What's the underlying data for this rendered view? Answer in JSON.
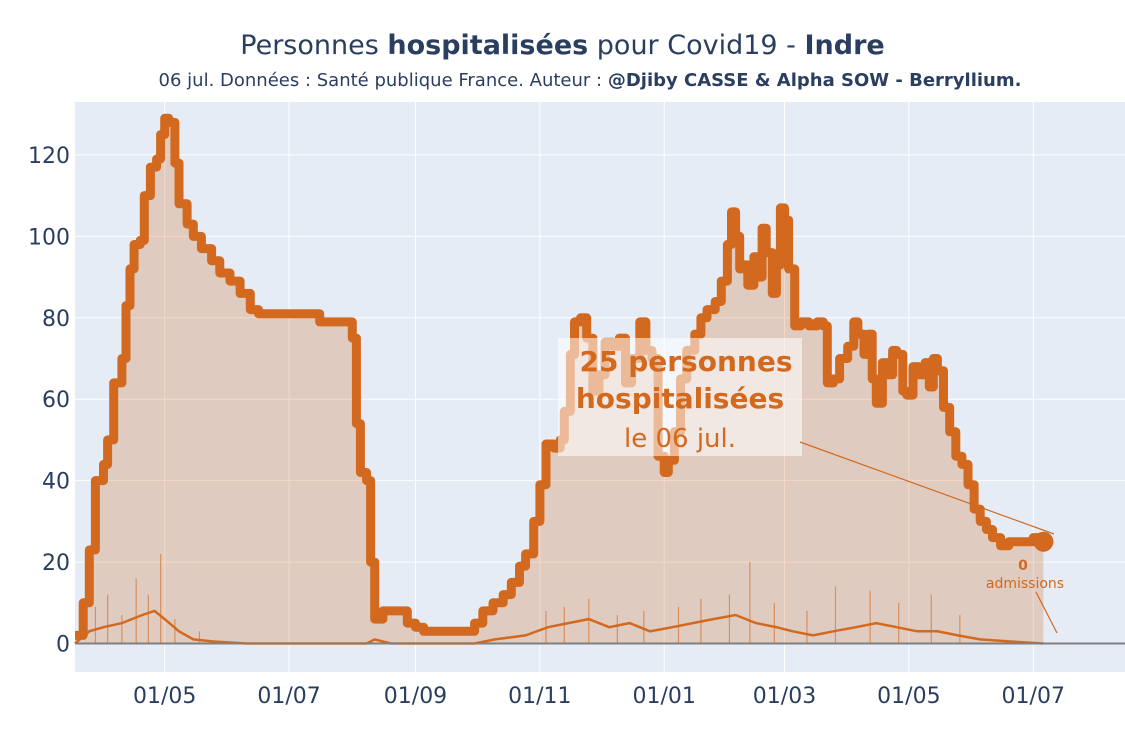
{
  "header": {
    "title_pre": "Personnes ",
    "title_bold": "hospitalisées",
    "title_mid": " pour Covid19 - ",
    "title_region": "Indre",
    "subtitle_pre": "06 jul. Données : Santé publique France. Auteur : ",
    "subtitle_bold": "@Djiby CASSE & Alpha SOW - Berryllium."
  },
  "annotation": {
    "value_line": "25 personnes",
    "label_line": "hospitalisées",
    "date_line": "le 06 jul.",
    "admissions_value": "0",
    "admissions_label": "admissions"
  },
  "colors": {
    "plot_bg": "#e5ecf6",
    "line": "#d2691e",
    "fill": "rgba(210,105,30,0.25)",
    "admissions": "#d2691e",
    "axis_text": "#2a3f5f"
  },
  "chart_data": {
    "type": "area",
    "x_start": "2020-03-18",
    "x_end": "2021-07-06",
    "xlim": [
      "2020-03-18",
      "2021-08-15"
    ],
    "ylim": [
      -7,
      133
    ],
    "y_ticks": [
      0,
      20,
      40,
      60,
      80,
      100,
      120
    ],
    "x_ticks": [
      {
        "date": "2020-05-01",
        "label": "01/05"
      },
      {
        "date": "2020-07-01",
        "label": "01/07"
      },
      {
        "date": "2020-09-01",
        "label": "01/09"
      },
      {
        "date": "2020-11-01",
        "label": "01/11"
      },
      {
        "date": "2021-01-01",
        "label": "01/01"
      },
      {
        "date": "2021-03-01",
        "label": "01/03"
      },
      {
        "date": "2021-05-01",
        "label": "01/05"
      },
      {
        "date": "2021-07-01",
        "label": "01/07"
      }
    ],
    "series": [
      {
        "name": "hospitalisées",
        "points": [
          [
            "2020-03-18",
            2
          ],
          [
            "2020-03-22",
            10
          ],
          [
            "2020-03-25",
            23
          ],
          [
            "2020-03-28",
            40
          ],
          [
            "2020-04-01",
            44
          ],
          [
            "2020-04-03",
            50
          ],
          [
            "2020-04-06",
            64
          ],
          [
            "2020-04-10",
            70
          ],
          [
            "2020-04-12",
            83
          ],
          [
            "2020-04-14",
            92
          ],
          [
            "2020-04-16",
            98
          ],
          [
            "2020-04-19",
            99
          ],
          [
            "2020-04-21",
            110
          ],
          [
            "2020-04-24",
            117
          ],
          [
            "2020-04-27",
            119
          ],
          [
            "2020-04-29",
            125
          ],
          [
            "2020-05-01",
            129
          ],
          [
            "2020-05-03",
            128
          ],
          [
            "2020-05-06",
            118
          ],
          [
            "2020-05-08",
            108
          ],
          [
            "2020-05-12",
            103
          ],
          [
            "2020-05-15",
            100
          ],
          [
            "2020-05-19",
            97
          ],
          [
            "2020-05-24",
            94
          ],
          [
            "2020-05-28",
            91
          ],
          [
            "2020-06-02",
            89
          ],
          [
            "2020-06-07",
            86
          ],
          [
            "2020-06-12",
            82
          ],
          [
            "2020-06-16",
            81
          ],
          [
            "2020-06-20",
            81
          ],
          [
            "2020-07-10",
            81
          ],
          [
            "2020-07-15",
            81
          ],
          [
            "2020-07-16",
            79
          ],
          [
            "2020-07-30",
            79
          ],
          [
            "2020-08-01",
            75
          ],
          [
            "2020-08-03",
            54
          ],
          [
            "2020-08-05",
            42
          ],
          [
            "2020-08-08",
            40
          ],
          [
            "2020-08-10",
            20
          ],
          [
            "2020-08-12",
            6
          ],
          [
            "2020-08-16",
            8
          ],
          [
            "2020-08-25",
            8
          ],
          [
            "2020-08-28",
            5
          ],
          [
            "2020-09-01",
            4
          ],
          [
            "2020-09-05",
            3
          ],
          [
            "2020-09-25",
            3
          ],
          [
            "2020-09-27",
            3
          ],
          [
            "2020-09-30",
            5
          ],
          [
            "2020-10-04",
            8
          ],
          [
            "2020-10-09",
            10
          ],
          [
            "2020-10-14",
            12
          ],
          [
            "2020-10-18",
            15
          ],
          [
            "2020-10-22",
            19
          ],
          [
            "2020-10-25",
            22
          ],
          [
            "2020-10-29",
            30
          ],
          [
            "2020-11-01",
            39
          ],
          [
            "2020-11-04",
            49
          ],
          [
            "2020-11-08",
            48
          ],
          [
            "2020-11-11",
            50
          ],
          [
            "2020-11-13",
            57
          ],
          [
            "2020-11-16",
            71
          ],
          [
            "2020-11-18",
            79
          ],
          [
            "2020-11-21",
            80
          ],
          [
            "2020-11-24",
            75
          ],
          [
            "2020-11-27",
            62
          ],
          [
            "2020-11-30",
            66
          ],
          [
            "2020-12-03",
            74
          ],
          [
            "2020-12-07",
            73
          ],
          [
            "2020-12-10",
            75
          ],
          [
            "2020-12-13",
            64
          ],
          [
            "2020-12-16",
            70
          ],
          [
            "2020-12-20",
            79
          ],
          [
            "2020-12-23",
            72
          ],
          [
            "2020-12-26",
            70
          ],
          [
            "2020-12-29",
            46
          ],
          [
            "2021-01-01",
            42
          ],
          [
            "2021-01-03",
            45
          ],
          [
            "2021-01-06",
            52
          ],
          [
            "2021-01-09",
            65
          ],
          [
            "2021-01-12",
            72
          ],
          [
            "2021-01-16",
            76
          ],
          [
            "2021-01-19",
            80
          ],
          [
            "2021-01-22",
            82
          ],
          [
            "2021-01-26",
            84
          ],
          [
            "2021-01-29",
            89
          ],
          [
            "2021-02-01",
            98
          ],
          [
            "2021-02-03",
            106
          ],
          [
            "2021-02-05",
            100
          ],
          [
            "2021-02-07",
            92
          ],
          [
            "2021-02-09",
            93
          ],
          [
            "2021-02-11",
            88
          ],
          [
            "2021-02-14",
            95
          ],
          [
            "2021-02-16",
            90
          ],
          [
            "2021-02-18",
            102
          ],
          [
            "2021-02-20",
            96
          ],
          [
            "2021-02-23",
            86
          ],
          [
            "2021-02-25",
            93
          ],
          [
            "2021-02-27",
            107
          ],
          [
            "2021-03-01",
            104
          ],
          [
            "2021-03-03",
            92
          ],
          [
            "2021-03-06",
            78
          ],
          [
            "2021-03-09",
            79
          ],
          [
            "2021-03-13",
            78
          ],
          [
            "2021-03-17",
            79
          ],
          [
            "2021-03-20",
            78
          ],
          [
            "2021-03-22",
            64
          ],
          [
            "2021-03-25",
            65
          ],
          [
            "2021-03-28",
            70
          ],
          [
            "2021-04-01",
            73
          ],
          [
            "2021-04-04",
            79
          ],
          [
            "2021-04-06",
            76
          ],
          [
            "2021-04-09",
            71
          ],
          [
            "2021-04-11",
            76
          ],
          [
            "2021-04-13",
            65
          ],
          [
            "2021-04-15",
            59
          ],
          [
            "2021-04-18",
            69
          ],
          [
            "2021-04-21",
            66
          ],
          [
            "2021-04-23",
            72
          ],
          [
            "2021-04-25",
            71
          ],
          [
            "2021-04-28",
            62
          ],
          [
            "2021-04-30",
            61
          ],
          [
            "2021-05-03",
            68
          ],
          [
            "2021-05-06",
            66
          ],
          [
            "2021-05-09",
            69
          ],
          [
            "2021-05-11",
            63
          ],
          [
            "2021-05-13",
            70
          ],
          [
            "2021-05-15",
            67
          ],
          [
            "2021-05-18",
            58
          ],
          [
            "2021-05-21",
            52
          ],
          [
            "2021-05-24",
            46
          ],
          [
            "2021-05-27",
            44
          ],
          [
            "2021-05-30",
            39
          ],
          [
            "2021-06-02",
            33
          ],
          [
            "2021-06-05",
            30
          ],
          [
            "2021-06-08",
            28
          ],
          [
            "2021-06-11",
            26
          ],
          [
            "2021-06-15",
            24
          ],
          [
            "2021-06-19",
            25
          ],
          [
            "2021-06-25",
            25
          ],
          [
            "2021-07-01",
            26
          ],
          [
            "2021-07-06",
            25
          ]
        ]
      },
      {
        "name": "admissions",
        "points": [
          [
            "2020-03-18",
            0
          ],
          [
            "2020-03-25",
            3
          ],
          [
            "2020-04-01",
            4
          ],
          [
            "2020-04-10",
            5
          ],
          [
            "2020-04-20",
            7
          ],
          [
            "2020-04-26",
            8
          ],
          [
            "2020-05-01",
            6
          ],
          [
            "2020-05-08",
            3
          ],
          [
            "2020-05-15",
            1
          ],
          [
            "2020-05-25",
            0.5
          ],
          [
            "2020-06-10",
            0
          ],
          [
            "2020-08-08",
            0
          ],
          [
            "2020-08-12",
            1
          ],
          [
            "2020-08-20",
            0
          ],
          [
            "2020-09-30",
            0
          ],
          [
            "2020-10-10",
            1
          ],
          [
            "2020-10-25",
            2
          ],
          [
            "2020-11-05",
            4
          ],
          [
            "2020-11-15",
            5
          ],
          [
            "2020-11-25",
            6
          ],
          [
            "2020-12-05",
            4
          ],
          [
            "2020-12-15",
            5
          ],
          [
            "2020-12-25",
            3
          ],
          [
            "2021-01-05",
            4
          ],
          [
            "2021-01-15",
            5
          ],
          [
            "2021-01-25",
            6
          ],
          [
            "2021-02-05",
            7
          ],
          [
            "2021-02-15",
            5
          ],
          [
            "2021-02-25",
            4
          ],
          [
            "2021-03-05",
            3
          ],
          [
            "2021-03-15",
            2
          ],
          [
            "2021-03-25",
            3
          ],
          [
            "2021-04-05",
            4
          ],
          [
            "2021-04-15",
            5
          ],
          [
            "2021-04-25",
            4
          ],
          [
            "2021-05-05",
            3
          ],
          [
            "2021-05-15",
            3
          ],
          [
            "2021-05-25",
            2
          ],
          [
            "2021-06-05",
            1
          ],
          [
            "2021-06-20",
            0.5
          ],
          [
            "2021-07-06",
            0
          ]
        ]
      }
    ],
    "admission_spikes": [
      [
        "2020-03-28",
        9
      ],
      [
        "2020-04-03",
        12
      ],
      [
        "2020-04-10",
        7
      ],
      [
        "2020-04-17",
        16
      ],
      [
        "2020-04-23",
        12
      ],
      [
        "2020-04-29",
        22
      ],
      [
        "2020-05-06",
        6
      ],
      [
        "2020-05-18",
        3
      ],
      [
        "2020-11-04",
        8
      ],
      [
        "2020-11-13",
        9
      ],
      [
        "2020-11-25",
        11
      ],
      [
        "2020-12-09",
        7
      ],
      [
        "2020-12-22",
        8
      ],
      [
        "2021-01-08",
        9
      ],
      [
        "2021-01-19",
        11
      ],
      [
        "2021-02-02",
        12
      ],
      [
        "2021-02-12",
        20
      ],
      [
        "2021-02-24",
        10
      ],
      [
        "2021-03-12",
        8
      ],
      [
        "2021-03-26",
        14
      ],
      [
        "2021-04-12",
        13
      ],
      [
        "2021-04-26",
        10
      ],
      [
        "2021-05-12",
        12
      ],
      [
        "2021-05-26",
        7
      ]
    ],
    "last_point": {
      "date": "2021-07-06",
      "value": 25
    }
  }
}
